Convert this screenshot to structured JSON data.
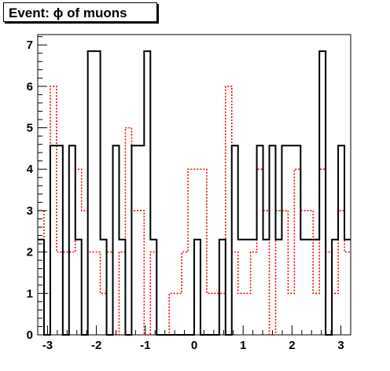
{
  "chart_data": {
    "type": "histogram",
    "title": "Event: ϕ of muons",
    "xlim": [
      -3.2,
      3.2
    ],
    "ylim": [
      0,
      7.25
    ],
    "xticks": [
      "-3",
      "-2",
      "-1",
      "0",
      "1",
      "2",
      "3"
    ],
    "yticks": [
      "0",
      "1",
      "2",
      "3",
      "4",
      "5",
      "6",
      "7"
    ],
    "bins": 50,
    "grid": false,
    "legend": "none",
    "series": [
      {
        "color": "#000000",
        "style": "solid",
        "values": [
          2.3,
          0,
          4.57,
          4.57,
          0,
          4.57,
          2.3,
          0,
          6.85,
          6.85,
          2.3,
          0,
          4.57,
          2.3,
          0,
          4.57,
          4.57,
          6.85,
          2.3,
          0,
          0,
          0,
          0,
          0,
          0,
          2.3,
          0,
          0,
          0,
          2.3,
          0,
          4.57,
          2.3,
          2.3,
          2.3,
          4.57,
          2.3,
          4.57,
          2.3,
          4.57,
          4.57,
          4.57,
          2.3,
          2.3,
          2.3,
          6.85,
          0,
          2.3,
          4.57,
          2.3
        ]
      },
      {
        "color": "#ff0000",
        "style": "dotted",
        "values": [
          3,
          1,
          6,
          2,
          2,
          2,
          4,
          3,
          2,
          2,
          1,
          2,
          0,
          2,
          5,
          3,
          3,
          0,
          2,
          0,
          0,
          1,
          1,
          2,
          4,
          4,
          4,
          1,
          1,
          1,
          6,
          2,
          1,
          1,
          2,
          4,
          3,
          0,
          3,
          3,
          1,
          4,
          3,
          3,
          1,
          4,
          2,
          1,
          3,
          2
        ]
      }
    ]
  }
}
